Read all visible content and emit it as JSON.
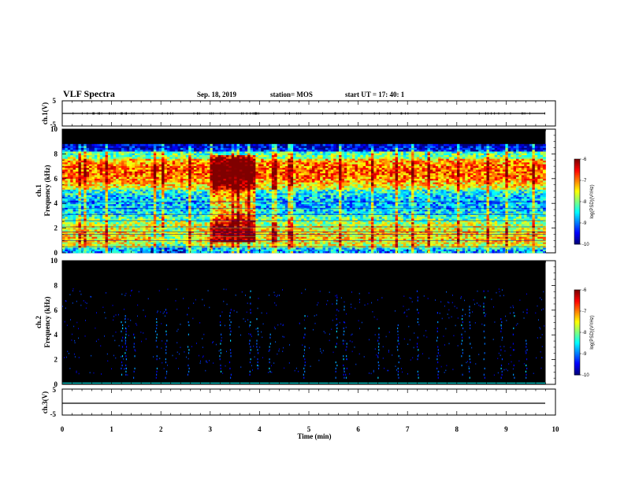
{
  "header": {
    "title": "VLF Spectra",
    "date": "Sep. 18, 2019",
    "station": "station= MOS",
    "start_ut": "start  UT =   17: 40: 1"
  },
  "chart_data": [
    {
      "type": "line",
      "ylabel": "ch.1(V)",
      "ylim": [
        -5,
        5
      ],
      "y_ticks": [
        "5",
        "-5"
      ],
      "xlim": [
        0,
        10
      ],
      "series": [
        {
          "values": [
            0
          ]
        }
      ]
    },
    {
      "type": "heatmap",
      "ylabel": "ch.1\nFrequency (kHz)",
      "ylim": [
        0,
        10
      ],
      "y_ticks": [
        "0",
        "2",
        "4",
        "6",
        "8",
        "10"
      ],
      "xlim": [
        0,
        10
      ],
      "colorbar": {
        "label": "log(PSD)(V²/Hz)",
        "ticks": [
          "-6",
          "-7",
          "-8",
          "-9",
          "-10"
        ],
        "range": [
          -10,
          -6
        ]
      }
    },
    {
      "type": "heatmap",
      "ylabel": "ch.2\nFrequency (kHz)",
      "ylim": [
        0,
        10
      ],
      "y_ticks": [
        "0",
        "2",
        "4",
        "6",
        "8",
        "10"
      ],
      "xlim": [
        0,
        10
      ],
      "colorbar": {
        "label": "log(PSD)(V²/Hz)",
        "ticks": [
          "-6",
          "-7",
          "-8",
          "-9",
          "-10"
        ],
        "range": [
          -10,
          -6
        ]
      }
    },
    {
      "type": "line",
      "ylabel": "ch.3(V)",
      "ylim": [
        -5,
        5
      ],
      "y_ticks": [
        "5",
        "-5"
      ],
      "xlim": [
        0,
        10
      ],
      "xlabel": "Time (min)",
      "x_ticks": [
        "0",
        "1",
        "2",
        "3",
        "4",
        "5",
        "6",
        "7",
        "8",
        "9",
        "10"
      ],
      "series": [
        {
          "values": [
            0
          ]
        }
      ]
    }
  ],
  "colors": {
    "background": "#000000",
    "axis": "#000000"
  }
}
